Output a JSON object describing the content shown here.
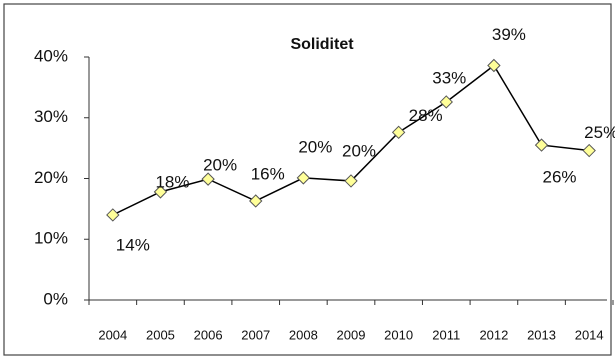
{
  "chart_data": {
    "type": "line",
    "title": "Soliditet",
    "categories": [
      "2004",
      "2005",
      "2006",
      "2007",
      "2008",
      "2009",
      "2010",
      "2011",
      "2012",
      "2013",
      "2014"
    ],
    "values": [
      14,
      17.8,
      19.9,
      16.3,
      20.1,
      19.6,
      27.6,
      32.6,
      38.6,
      25.5,
      24.6
    ],
    "value_labels": [
      "14%",
      "18%",
      "20%",
      "16%",
      "20%",
      "20%",
      "28%",
      "33%",
      "39%",
      "26%",
      "25%"
    ],
    "color": "#000000",
    "marker_color": "#ffff99",
    "ylim": [
      0,
      40
    ],
    "yticks": [
      {
        "value": 0,
        "label": "0%"
      },
      {
        "value": 10,
        "label": "10%"
      },
      {
        "value": 20,
        "label": "20%"
      },
      {
        "value": 30,
        "label": "30%"
      },
      {
        "value": 40,
        "label": "40%"
      }
    ]
  }
}
